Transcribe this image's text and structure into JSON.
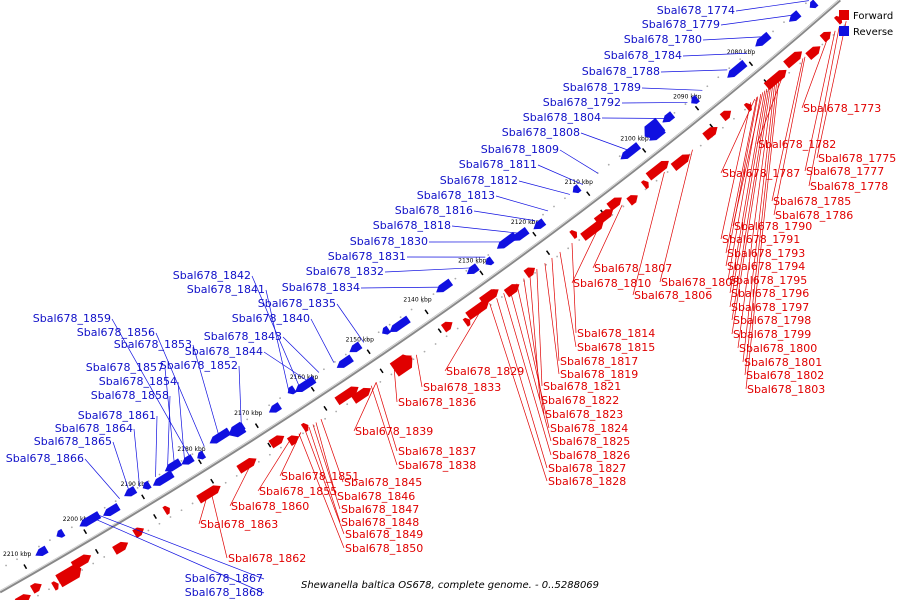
{
  "caption": "Shewanella baltica OS678, complete genome. - 0..5288069",
  "legend": [
    {
      "label": "Forward",
      "color": "#e00000"
    },
    {
      "label": "Reverse",
      "color": "#1010e0"
    }
  ],
  "colors": {
    "forward": "#e00000",
    "reverse": "#1010e0",
    "backbone": "#777777"
  },
  "ticks": [
    "2080 kbp",
    "2090 kbp",
    "2100 kbp",
    "2110 kbp",
    "2120 kbp",
    "2130 kbp",
    "2140 kbp",
    "2150 kbp",
    "2160 kbp",
    "2170 kbp",
    "2180 kbp",
    "2190 kbp",
    "2200 kbp",
    "2210 kbp"
  ],
  "reverse_genes": [
    "Sbal678_1774",
    "Sbal678_1779",
    "Sbal678_1780",
    "Sbal678_1784",
    "Sbal678_1788",
    "Sbal678_1789",
    "Sbal678_1792",
    "Sbal678_1804",
    "Sbal678_1808",
    "Sbal678_1809",
    "Sbal678_1811",
    "Sbal678_1812",
    "Sbal678_1813",
    "Sbal678_1816",
    "Sbal678_1818",
    "Sbal678_1830",
    "Sbal678_1831",
    "Sbal678_1832",
    "Sbal678_1834",
    "Sbal678_1842",
    "Sbal678_1841",
    "Sbal678_1835",
    "Sbal678_1840",
    "Sbal678_1843",
    "Sbal678_1844",
    "Sbal678_1859",
    "Sbal678_1856",
    "Sbal678_1853",
    "Sbal678_1852",
    "Sbal678_1857",
    "Sbal678_1854",
    "Sbal678_1858",
    "Sbal678_1861",
    "Sbal678_1864",
    "Sbal678_1865",
    "Sbal678_1866",
    "Sbal678_1867",
    "Sbal678_1868"
  ],
  "forward_genes": [
    "Sbal678_1773",
    "Sbal678_1782",
    "Sbal678_1775",
    "Sbal678_1787",
    "Sbal678_1777",
    "Sbal678_1778",
    "Sbal678_1785",
    "Sbal678_1786",
    "Sbal678_1790",
    "Sbal678_1791",
    "Sbal678_1793",
    "Sbal678_1794",
    "Sbal678_1795",
    "Sbal678_1796",
    "Sbal678_1797",
    "Sbal678_1798",
    "Sbal678_1799",
    "Sbal678_1800",
    "Sbal678_1801",
    "Sbal678_1802",
    "Sbal678_1803",
    "Sbal678_1807",
    "Sbal678_1810",
    "Sbal678_1805",
    "Sbal678_1806",
    "Sbal678_1814",
    "Sbal678_1815",
    "Sbal678_1817",
    "Sbal678_1819",
    "Sbal678_1829",
    "Sbal678_1821",
    "Sbal678_1833",
    "Sbal678_1822",
    "Sbal678_1836",
    "Sbal678_1823",
    "Sbal678_1824",
    "Sbal678_1839",
    "Sbal678_1825",
    "Sbal678_1826",
    "Sbal678_1837",
    "Sbal678_1838",
    "Sbal678_1827",
    "Sbal678_1828",
    "Sbal678_1851",
    "Sbal678_1845",
    "Sbal678_1855",
    "Sbal678_1846",
    "Sbal678_1860",
    "Sbal678_1847",
    "Sbal678_1848",
    "Sbal678_1863",
    "Sbal678_1849",
    "Sbal678_1850",
    "Sbal678_1862"
  ]
}
